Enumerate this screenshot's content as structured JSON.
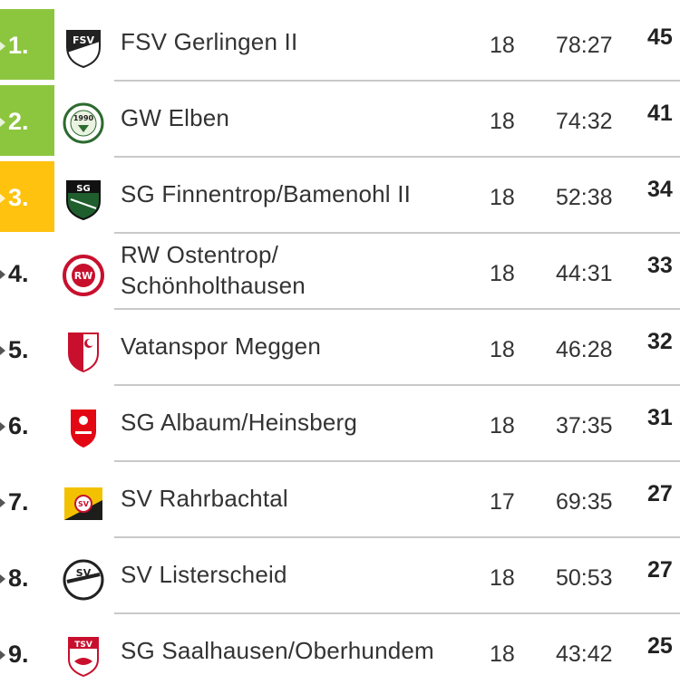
{
  "standings": [
    {
      "rank": "1.",
      "team": "FSV Gerlingen II",
      "games": "18",
      "goals": "78:27",
      "points": "45",
      "logo": "fsv-gerlingen-crest-icon",
      "highlight": "green"
    },
    {
      "rank": "2.",
      "team": "GW Elben",
      "games": "18",
      "goals": "74:32",
      "points": "41",
      "logo": "gw-elben-crest-icon",
      "highlight": "green"
    },
    {
      "rank": "3.",
      "team": "SG Finnentrop/Bamenohl II",
      "games": "18",
      "goals": "52:38",
      "points": "34",
      "logo": "sg-finnentrop-crest-icon",
      "highlight": "yellow"
    },
    {
      "rank": "4.",
      "team": "RW Ostentrop/ Schönholthausen",
      "team_line1": "RW Ostentrop/",
      "team_line2": "Schönholthausen",
      "games": "18",
      "goals": "44:31",
      "points": "33",
      "logo": "rw-ostentrop-crest-icon",
      "highlight": "none"
    },
    {
      "rank": "5.",
      "team": "Vatanspor Meggen",
      "games": "18",
      "goals": "46:28",
      "points": "32",
      "logo": "vatanspor-meggen-crest-icon",
      "highlight": "none"
    },
    {
      "rank": "6.",
      "team": "SG Albaum/Heinsberg",
      "games": "18",
      "goals": "37:35",
      "points": "31",
      "logo": "sg-albaum-crest-icon",
      "highlight": "none"
    },
    {
      "rank": "7.",
      "team": "SV Rahrbachtal",
      "games": "17",
      "goals": "69:35",
      "points": "27",
      "logo": "sv-rahrbachtal-crest-icon",
      "highlight": "none"
    },
    {
      "rank": "8.",
      "team": "SV Listerscheid",
      "games": "18",
      "goals": "50:53",
      "points": "27",
      "logo": "sv-listerscheid-crest-icon",
      "highlight": "none"
    },
    {
      "rank": "9.",
      "team": "SG Saalhausen/Oberhundem",
      "games": "18",
      "goals": "43:42",
      "points": "25",
      "logo": "tsv-saalhausen-crest-icon",
      "highlight": "none"
    }
  ],
  "logo_text": {
    "fsv": "FSV",
    "elben_year": "1990",
    "sg": "SG",
    "rw": "RW",
    "sv": "SV",
    "tsv": "TSV"
  },
  "colors": {
    "promotion_green": "#8cc63f",
    "relegation_yellow": "#ffc20e",
    "divider": "#c9c9c9",
    "text": "#333333"
  }
}
